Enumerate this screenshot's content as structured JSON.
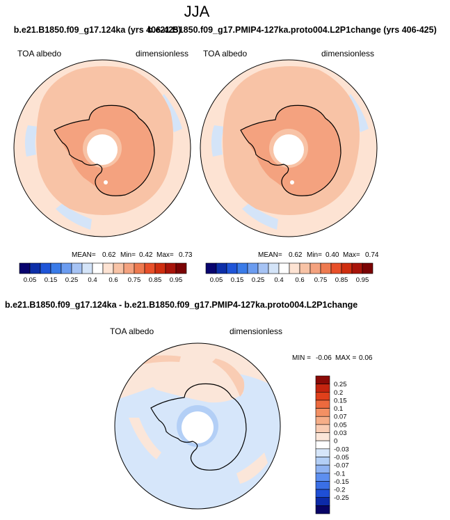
{
  "figure": {
    "title": "JJA",
    "panel_left_title": "b.e21.B1850.f09_g17.124ka (yrs 406-425)",
    "panel_right_title": "b.e21.B1850.f09_g17.PMIP4-127ka.proto004.L2P1change (yrs 406-425)",
    "diff_title": "b.e21.B1850.f09_g17.124ka - b.e21.B1850.f09_g17.PMIP4-127ka.proto004.L2P1change"
  },
  "chart_data": [
    {
      "type": "heatmap",
      "panel": "left",
      "variable": "TOA albedo",
      "units": "dimensionless",
      "stats": {
        "mean_label": "MEAN=",
        "mean": "0.62",
        "min_label": "Min=",
        "min": "0.42",
        "max_label": "Max=",
        "max": "0.73"
      },
      "colorbar": {
        "ticks": [
          "0.05",
          "0.15",
          "0.25",
          "0.4",
          "0.6",
          "0.75",
          "0.85",
          "0.95"
        ],
        "colors": [
          "#08046e",
          "#0d2fa8",
          "#1f55d8",
          "#3a7be8",
          "#6b9cf0",
          "#a6c3f4",
          "#d4e4f8",
          "#ffffff",
          "#fde3d3",
          "#f8c3a6",
          "#f4a27f",
          "#ee7a50",
          "#e8502a",
          "#cf2e10",
          "#a8140a",
          "#7a0304"
        ]
      }
    },
    {
      "type": "heatmap",
      "panel": "right",
      "variable": "TOA albedo",
      "units": "dimensionless",
      "stats": {
        "mean_label": "MEAN=",
        "mean": "0.62",
        "min_label": "Min=",
        "min": "0.40",
        "max_label": "Max=",
        "max": "0.74"
      },
      "colorbar": {
        "ticks": [
          "0.05",
          "0.15",
          "0.25",
          "0.4",
          "0.6",
          "0.75",
          "0.85",
          "0.95"
        ],
        "colors": [
          "#08046e",
          "#0d2fa8",
          "#1f55d8",
          "#3a7be8",
          "#6b9cf0",
          "#a6c3f4",
          "#d4e4f8",
          "#ffffff",
          "#fde3d3",
          "#f8c3a6",
          "#f4a27f",
          "#ee7a50",
          "#e8502a",
          "#cf2e10",
          "#a8140a",
          "#7a0304"
        ]
      }
    },
    {
      "type": "heatmap",
      "panel": "difference",
      "variable": "TOA albedo",
      "units": "dimensionless",
      "stats": {
        "min_label": "MIN =",
        "min": "-0.06",
        "max_label": "MAX =",
        "max": "0.06"
      },
      "colorbar": {
        "ticks": [
          "0.25",
          "0.2",
          "0.15",
          "0.1",
          "0.07",
          "0.05",
          "0.03",
          "0",
          "-0.03",
          "-0.05",
          "-0.07",
          "-0.1",
          "-0.15",
          "-0.2",
          "-0.25"
        ],
        "colors": [
          "#8b0a07",
          "#c4240f",
          "#e0401b",
          "#ec6a3e",
          "#f39063",
          "#f6ae88",
          "#f9ccb3",
          "#fbe6d9",
          "#ffffff",
          "#d6e6fa",
          "#b3cff6",
          "#8fb3f2",
          "#5d8ff0",
          "#3a6fe6",
          "#1f4fd6",
          "#0c2aa8",
          "#080466"
        ]
      }
    }
  ]
}
